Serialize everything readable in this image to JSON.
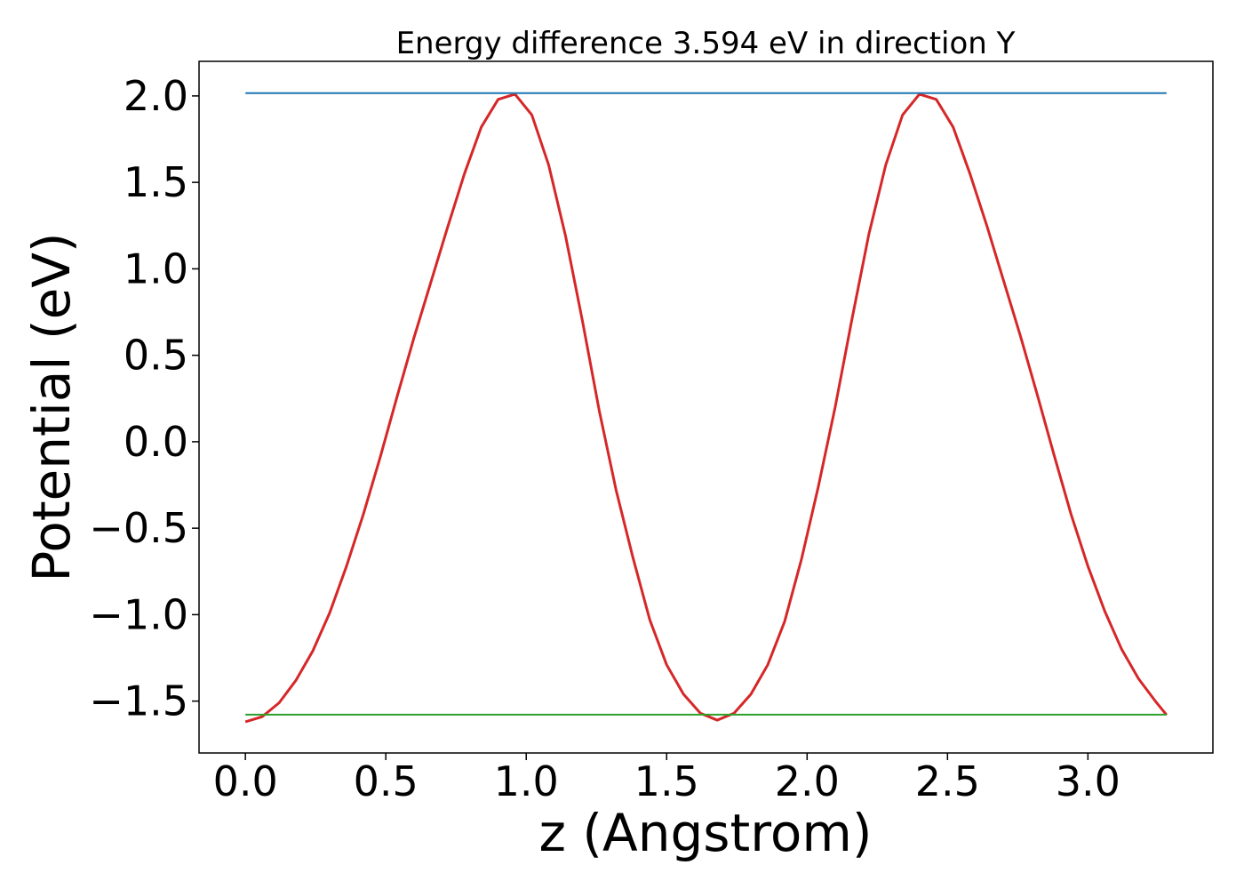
{
  "chart_data": {
    "type": "line",
    "title": "Energy difference 3.594 eV in direction Y",
    "xlabel": "z (Angstrom)",
    "ylabel": "Potential (eV)",
    "xlim": [
      -0.165,
      3.445
    ],
    "ylim": [
      -1.8,
      2.2
    ],
    "x_ticks": [
      0.0,
      0.5,
      1.0,
      1.5,
      2.0,
      2.5,
      3.0
    ],
    "y_ticks": [
      -1.5,
      -1.0,
      -0.5,
      0.0,
      0.5,
      1.0,
      1.5,
      2.0
    ],
    "x_tick_labels": [
      "0.0",
      "0.5",
      "1.0",
      "1.5",
      "2.0",
      "2.5",
      "3.0"
    ],
    "y_tick_labels": [
      "−1.5",
      "−1.0",
      "−0.5",
      "0.0",
      "0.5",
      "1.0",
      "1.5",
      "2.0"
    ],
    "grid": false,
    "legend": "none",
    "series": [
      {
        "color": "#d62728",
        "x": [
          0.0,
          0.06,
          0.12,
          0.18,
          0.24,
          0.3,
          0.36,
          0.42,
          0.48,
          0.54,
          0.6,
          0.66,
          0.72,
          0.78,
          0.84,
          0.9,
          0.96,
          1.02,
          1.08,
          1.14,
          1.2,
          1.26,
          1.32,
          1.38,
          1.44,
          1.5,
          1.56,
          1.62,
          1.68,
          1.74,
          1.8,
          1.86,
          1.92,
          1.98,
          2.04,
          2.1,
          2.16,
          2.22,
          2.28,
          2.34,
          2.4,
          2.46,
          2.52,
          2.58,
          2.64,
          2.7,
          2.76,
          2.82,
          2.88,
          2.94,
          3.0,
          3.06,
          3.12,
          3.18,
          3.24,
          3.28
        ],
        "values": [
          -1.62,
          -1.59,
          -1.51,
          -1.38,
          -1.21,
          -0.99,
          -0.72,
          -0.42,
          -0.09,
          0.26,
          0.6,
          0.92,
          1.24,
          1.55,
          1.82,
          1.98,
          2.01,
          1.89,
          1.6,
          1.19,
          0.7,
          0.18,
          -0.28,
          -0.67,
          -1.03,
          -1.29,
          -1.46,
          -1.57,
          -1.61,
          -1.57,
          -1.46,
          -1.29,
          -1.04,
          -0.68,
          -0.26,
          0.2,
          0.71,
          1.2,
          1.6,
          1.89,
          2.01,
          1.98,
          1.82,
          1.55,
          1.25,
          0.93,
          0.61,
          0.27,
          -0.08,
          -0.42,
          -0.72,
          -0.98,
          -1.2,
          -1.37,
          -1.5,
          -1.58
        ]
      },
      {
        "color": "#1f77b4",
        "x": [
          0.0,
          3.28
        ],
        "values": [
          2.016,
          2.016
        ]
      },
      {
        "color": "#2ca02c",
        "x": [
          0.0,
          3.28
        ],
        "values": [
          -1.578,
          -1.578
        ]
      }
    ]
  }
}
